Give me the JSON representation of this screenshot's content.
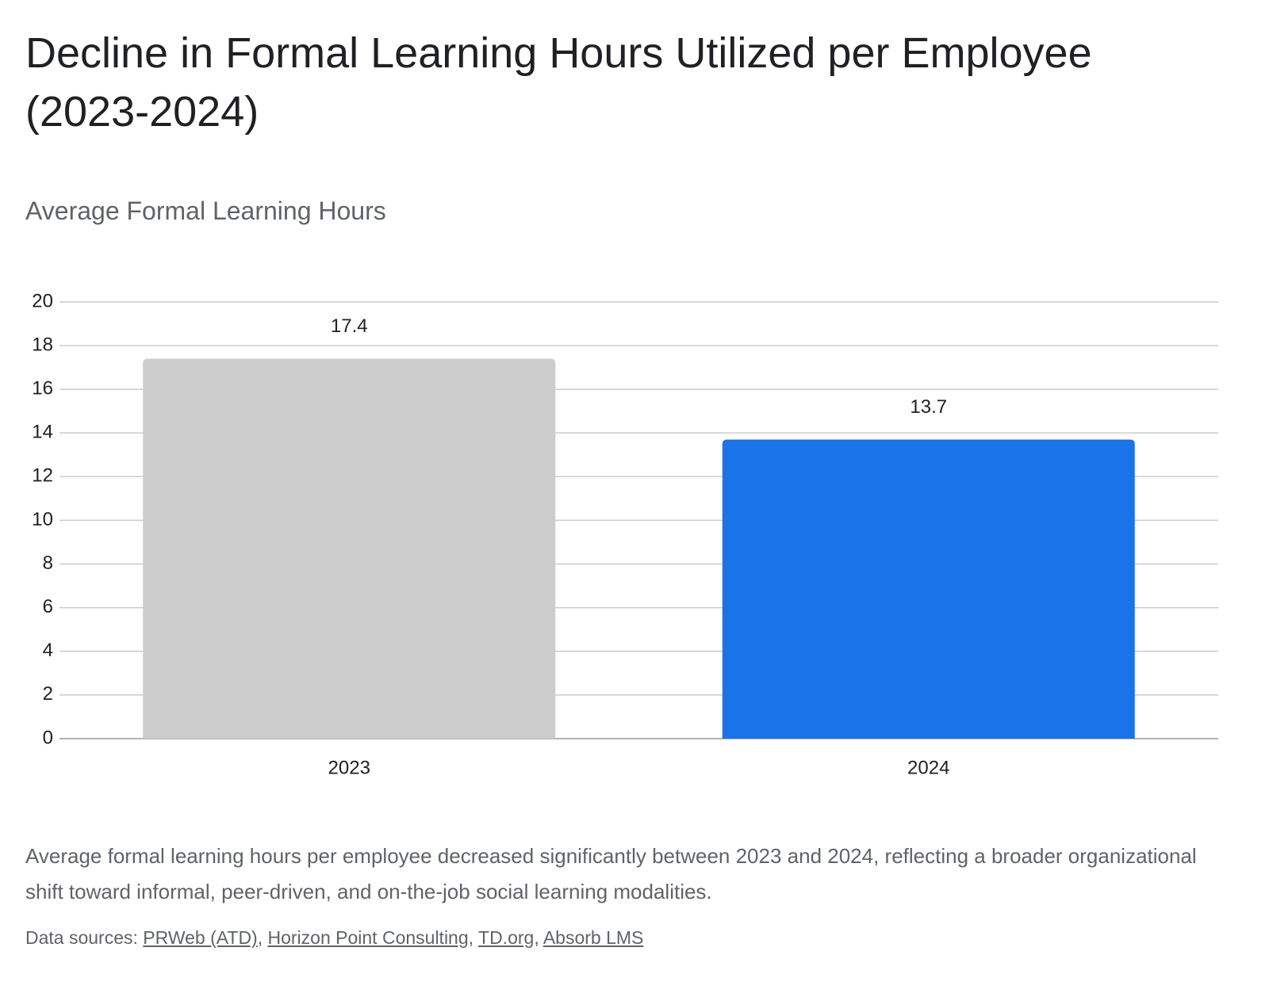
{
  "chart_data": {
    "type": "bar",
    "title": "Decline in Formal Learning Hours Utilized per Employee (2023-2024)",
    "subtitle": "Average Formal Learning Hours",
    "categories": [
      "2023",
      "2024"
    ],
    "values": [
      17.4,
      13.7
    ],
    "colors": [
      "#cccccc",
      "#1a73e8"
    ],
    "ylim": [
      0,
      20
    ],
    "yticks": [
      0,
      2,
      4,
      6,
      8,
      10,
      12,
      14,
      16,
      18,
      20
    ],
    "grid": true,
    "description": "Average formal learning hours per employee decreased significantly between 2023 and 2024, reflecting a broader organizational shift toward informal, peer-driven, and on-the-job social learning modalities.",
    "sources_label": "Data sources:",
    "separator": ",",
    "sources": [
      "PRWeb (ATD)",
      "Horizon Point Consulting",
      "TD.org",
      "Absorb LMS"
    ]
  }
}
